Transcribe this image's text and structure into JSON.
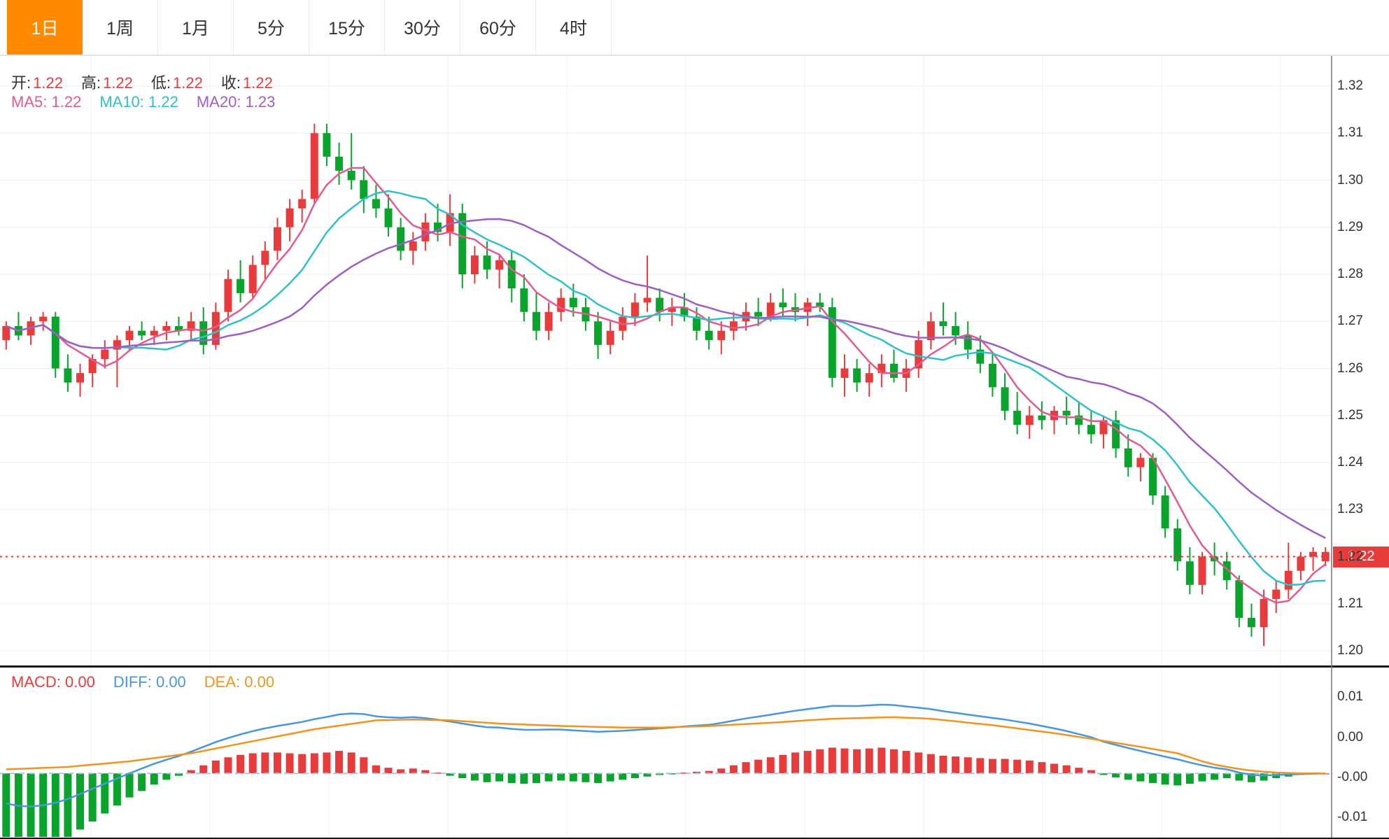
{
  "tabs": [
    {
      "label": "1日",
      "active": true
    },
    {
      "label": "1周",
      "active": false
    },
    {
      "label": "1月",
      "active": false
    },
    {
      "label": "5分",
      "active": false
    },
    {
      "label": "15分",
      "active": false
    },
    {
      "label": "30分",
      "active": false
    },
    {
      "label": "60分",
      "active": false
    },
    {
      "label": "4时",
      "active": false
    }
  ],
  "legend": {
    "ohlc": [
      {
        "label": "开:",
        "value": "1.22"
      },
      {
        "label": "高:",
        "value": "1.22"
      },
      {
        "label": "低:",
        "value": "1.22"
      },
      {
        "label": "收:",
        "value": "1.22"
      }
    ],
    "ma": [
      {
        "label": "MA5:",
        "value": "1.22",
        "color": "#e25a90"
      },
      {
        "label": "MA10:",
        "value": "1.22",
        "color": "#2fc0ca"
      },
      {
        "label": "MA20:",
        "value": "1.23",
        "color": "#9c5fc4"
      }
    ]
  },
  "macd_legend": [
    {
      "label": "MACD:",
      "value": "0.00",
      "color": "#e83b3b"
    },
    {
      "label": "DIFF:",
      "value": "0.00",
      "color": "#4897dd"
    },
    {
      "label": "DEA:",
      "value": "0.00",
      "color": "#f0941e"
    }
  ],
  "price_axis": {
    "labels": [
      "1.32",
      "1.31",
      "1.30",
      "1.29",
      "1.28",
      "1.27",
      "1.26",
      "1.25",
      "1.24",
      "1.23",
      "1.22",
      "1.21",
      "1.20"
    ]
  },
  "macd_axis": {
    "labels": [
      "0.01",
      "0.00",
      "-0.00",
      "-0.01"
    ]
  },
  "current_price": {
    "value": "1.22"
  },
  "chart_data": {
    "type": "candlestick",
    "title": "",
    "price_range": [
      1.2,
      1.32
    ],
    "price_tick_step": 0.01,
    "current_price": 1.22,
    "ma_windows": [
      5,
      10,
      20
    ],
    "colors": {
      "up": "#e83b3b",
      "down": "#09a42c",
      "ma5": "#e25a90",
      "ma10": "#2fc0ca",
      "ma20": "#9c5fc4",
      "diff": "#4897dd",
      "dea": "#f0941e",
      "accent_tab": "#ff8a00"
    },
    "candles": [
      [
        1.266,
        1.27,
        1.264,
        1.269
      ],
      [
        1.269,
        1.272,
        1.266,
        1.267
      ],
      [
        1.267,
        1.271,
        1.265,
        1.27
      ],
      [
        1.27,
        1.272,
        1.268,
        1.271
      ],
      [
        1.271,
        1.272,
        1.258,
        1.26
      ],
      [
        1.26,
        1.263,
        1.255,
        1.257
      ],
      [
        1.257,
        1.261,
        1.254,
        1.259
      ],
      [
        1.259,
        1.263,
        1.256,
        1.262
      ],
      [
        1.262,
        1.266,
        1.26,
        1.264
      ],
      [
        1.264,
        1.267,
        1.256,
        1.266
      ],
      [
        1.266,
        1.269,
        1.264,
        1.268
      ],
      [
        1.268,
        1.27,
        1.266,
        1.267
      ],
      [
        1.267,
        1.269,
        1.265,
        1.268
      ],
      [
        1.268,
        1.27,
        1.266,
        1.269
      ],
      [
        1.269,
        1.271,
        1.267,
        1.268
      ],
      [
        1.268,
        1.272,
        1.266,
        1.27
      ],
      [
        1.27,
        1.273,
        1.263,
        1.265
      ],
      [
        1.265,
        1.274,
        1.264,
        1.272
      ],
      [
        1.272,
        1.281,
        1.27,
        1.279
      ],
      [
        1.279,
        1.283,
        1.274,
        1.276
      ],
      [
        1.276,
        1.284,
        1.275,
        1.282
      ],
      [
        1.282,
        1.287,
        1.279,
        1.285
      ],
      [
        1.285,
        1.292,
        1.283,
        1.29
      ],
      [
        1.29,
        1.296,
        1.287,
        1.294
      ],
      [
        1.294,
        1.298,
        1.291,
        1.296
      ],
      [
        1.296,
        1.312,
        1.295,
        1.31
      ],
      [
        1.31,
        1.312,
        1.303,
        1.305
      ],
      [
        1.305,
        1.308,
        1.299,
        1.302
      ],
      [
        1.302,
        1.31,
        1.298,
        1.3
      ],
      [
        1.3,
        1.303,
        1.293,
        1.296
      ],
      [
        1.296,
        1.299,
        1.292,
        1.294
      ],
      [
        1.294,
        1.297,
        1.288,
        1.29
      ],
      [
        1.29,
        1.292,
        1.283,
        1.285
      ],
      [
        1.285,
        1.289,
        1.282,
        1.287
      ],
      [
        1.287,
        1.293,
        1.285,
        1.291
      ],
      [
        1.291,
        1.295,
        1.287,
        1.289
      ],
      [
        1.289,
        1.297,
        1.286,
        1.293
      ],
      [
        1.293,
        1.295,
        1.277,
        1.28
      ],
      [
        1.28,
        1.286,
        1.278,
        1.284
      ],
      [
        1.284,
        1.287,
        1.279,
        1.281
      ],
      [
        1.281,
        1.284,
        1.277,
        1.283
      ],
      [
        1.283,
        1.285,
        1.274,
        1.277
      ],
      [
        1.277,
        1.28,
        1.27,
        1.272
      ],
      [
        1.272,
        1.276,
        1.266,
        1.268
      ],
      [
        1.268,
        1.274,
        1.266,
        1.272
      ],
      [
        1.272,
        1.277,
        1.27,
        1.275
      ],
      [
        1.275,
        1.278,
        1.271,
        1.273
      ],
      [
        1.273,
        1.275,
        1.268,
        1.27
      ],
      [
        1.27,
        1.272,
        1.262,
        1.265
      ],
      [
        1.265,
        1.27,
        1.263,
        1.268
      ],
      [
        1.268,
        1.273,
        1.266,
        1.271
      ],
      [
        1.271,
        1.276,
        1.269,
        1.274
      ],
      [
        1.274,
        1.284,
        1.272,
        1.275
      ],
      [
        1.275,
        1.277,
        1.27,
        1.272
      ],
      [
        1.272,
        1.275,
        1.269,
        1.273
      ],
      [
        1.273,
        1.276,
        1.27,
        1.271
      ],
      [
        1.271,
        1.273,
        1.266,
        1.268
      ],
      [
        1.268,
        1.271,
        1.264,
        1.266
      ],
      [
        1.266,
        1.27,
        1.263,
        1.268
      ],
      [
        1.268,
        1.272,
        1.266,
        1.27
      ],
      [
        1.27,
        1.274,
        1.268,
        1.272
      ],
      [
        1.272,
        1.275,
        1.269,
        1.271
      ],
      [
        1.271,
        1.276,
        1.27,
        1.274
      ],
      [
        1.274,
        1.277,
        1.271,
        1.273
      ],
      [
        1.273,
        1.276,
        1.27,
        1.272
      ],
      [
        1.272,
        1.275,
        1.269,
        1.274
      ],
      [
        1.274,
        1.276,
        1.272,
        1.273
      ],
      [
        1.273,
        1.275,
        1.256,
        1.258
      ],
      [
        1.258,
        1.263,
        1.254,
        1.26
      ],
      [
        1.26,
        1.262,
        1.255,
        1.257
      ],
      [
        1.257,
        1.261,
        1.254,
        1.259
      ],
      [
        1.259,
        1.263,
        1.256,
        1.261
      ],
      [
        1.261,
        1.264,
        1.257,
        1.258
      ],
      [
        1.258,
        1.262,
        1.255,
        1.26
      ],
      [
        1.26,
        1.268,
        1.258,
        1.266
      ],
      [
        1.266,
        1.272,
        1.264,
        1.27
      ],
      [
        1.27,
        1.274,
        1.267,
        1.269
      ],
      [
        1.269,
        1.272,
        1.265,
        1.267
      ],
      [
        1.267,
        1.27,
        1.262,
        1.264
      ],
      [
        1.264,
        1.267,
        1.259,
        1.261
      ],
      [
        1.261,
        1.263,
        1.254,
        1.256
      ],
      [
        1.256,
        1.259,
        1.249,
        1.251
      ],
      [
        1.251,
        1.255,
        1.246,
        1.248
      ],
      [
        1.248,
        1.252,
        1.245,
        1.25
      ],
      [
        1.25,
        1.253,
        1.247,
        1.249
      ],
      [
        1.249,
        1.252,
        1.246,
        1.251
      ],
      [
        1.251,
        1.254,
        1.248,
        1.25
      ],
      [
        1.25,
        1.253,
        1.246,
        1.248
      ],
      [
        1.248,
        1.251,
        1.244,
        1.246
      ],
      [
        1.246,
        1.25,
        1.243,
        1.249
      ],
      [
        1.249,
        1.251,
        1.241,
        1.243
      ],
      [
        1.243,
        1.246,
        1.237,
        1.239
      ],
      [
        1.239,
        1.242,
        1.236,
        1.241
      ],
      [
        1.241,
        1.242,
        1.231,
        1.233
      ],
      [
        1.233,
        1.235,
        1.224,
        1.226
      ],
      [
        1.226,
        1.228,
        1.217,
        1.219
      ],
      [
        1.219,
        1.222,
        1.212,
        1.214
      ],
      [
        1.214,
        1.221,
        1.212,
        1.22
      ],
      [
        1.22,
        1.223,
        1.216,
        1.219
      ],
      [
        1.219,
        1.221,
        1.213,
        1.215
      ],
      [
        1.215,
        1.216,
        1.205,
        1.207
      ],
      [
        1.207,
        1.21,
        1.203,
        1.205
      ],
      [
        1.205,
        1.213,
        1.201,
        1.211
      ],
      [
        1.211,
        1.215,
        1.208,
        1.213
      ],
      [
        1.213,
        1.223,
        1.211,
        1.217
      ],
      [
        1.217,
        1.221,
        1.215,
        1.22
      ],
      [
        1.22,
        1.222,
        1.217,
        1.221
      ],
      [
        1.219,
        1.222,
        1.218,
        1.221
      ]
    ],
    "macd": {
      "unit": 0.001,
      "axis_range": [
        -0.008,
        0.013
      ],
      "hist": [
        -8.5,
        -9.2,
        -9.5,
        -9.3,
        -8.8,
        -8.0,
        -7.0,
        -6.0,
        -5.0,
        -4.0,
        -3.0,
        -2.2,
        -1.4,
        -0.8,
        -0.3,
        0.4,
        1.0,
        1.6,
        2.0,
        2.3,
        2.5,
        2.6,
        2.6,
        2.5,
        2.4,
        2.5,
        2.6,
        2.8,
        2.6,
        2.0,
        1.0,
        0.7,
        0.5,
        0.6,
        0.4,
        0.1,
        -0.3,
        -0.6,
        -0.9,
        -1.1,
        -1.0,
        -1.2,
        -1.3,
        -1.2,
        -1.0,
        -0.9,
        -1.0,
        -1.1,
        -1.2,
        -1.0,
        -0.8,
        -0.6,
        -0.4,
        -0.2,
        -0.1,
        0.1,
        0.2,
        0.3,
        0.6,
        1.0,
        1.4,
        1.7,
        2.0,
        2.3,
        2.6,
        2.8,
        3.0,
        3.2,
        3.1,
        3.0,
        3.1,
        3.2,
        3.0,
        2.8,
        2.6,
        2.4,
        2.2,
        2.1,
        2.0,
        1.9,
        1.8,
        1.8,
        1.7,
        1.6,
        1.4,
        1.2,
        1.0,
        0.7,
        0.4,
        -0.2,
        -0.5,
        -0.8,
        -1.0,
        -1.2,
        -1.4,
        -1.5,
        -1.3,
        -1.0,
        -0.8,
        -0.6,
        -0.9,
        -1.1,
        -0.9,
        -0.6,
        -0.4,
        -0.2,
        -0.1,
        0.0
      ],
      "diff": [
        -3.75,
        -4.04,
        -4.13,
        -3.97,
        -3.66,
        -3.2,
        -2.56,
        -1.92,
        -1.28,
        -0.64,
        0,
        0.6,
        1.2,
        1.7,
        2.15,
        2.7,
        3.3,
        3.9,
        4.4,
        4.85,
        5.25,
        5.6,
        5.9,
        6.15,
        6.4,
        6.75,
        7.02,
        7.34,
        7.46,
        7.38,
        7.1,
        6.98,
        6.92,
        7.0,
        6.87,
        6.68,
        6.45,
        6.2,
        5.95,
        5.75,
        5.7,
        5.54,
        5.43,
        5.42,
        5.46,
        5.45,
        5.36,
        5.27,
        5.18,
        5.24,
        5.3,
        5.4,
        5.5,
        5.6,
        5.7,
        5.85,
        5.95,
        6.05,
        6.28,
        6.56,
        6.84,
        7.07,
        7.3,
        7.55,
        7.8,
        8.0,
        8.2,
        8.4,
        8.39,
        8.38,
        8.47,
        8.56,
        8.5,
        8.33,
        8.17,
        8.0,
        7.74,
        7.53,
        7.32,
        7.11,
        6.9,
        6.7,
        6.45,
        6.2,
        5.9,
        5.6,
        5.27,
        4.88,
        4.5,
        3.95,
        3.55,
        3.15,
        2.8,
        2.43,
        2.07,
        1.75,
        1.35,
        1.0,
        0.7,
        0.5,
        0.1,
        -0.2,
        -0.25,
        -0.2,
        -0.15,
        -0.1,
        -0.05,
        0
      ],
      "dea": [
        0.5,
        0.56,
        0.62,
        0.68,
        0.74,
        0.8,
        0.94,
        1.08,
        1.22,
        1.36,
        1.5,
        1.7,
        1.9,
        2.1,
        2.3,
        2.5,
        2.8,
        3.1,
        3.4,
        3.7,
        4.0,
        4.3,
        4.6,
        4.9,
        5.2,
        5.5,
        5.72,
        5.94,
        6.16,
        6.38,
        6.6,
        6.63,
        6.67,
        6.7,
        6.67,
        6.63,
        6.6,
        6.5,
        6.4,
        6.3,
        6.2,
        6.14,
        6.08,
        6.02,
        5.96,
        5.9,
        5.86,
        5.82,
        5.78,
        5.74,
        5.7,
        5.7,
        5.7,
        5.7,
        5.75,
        5.8,
        5.85,
        5.9,
        5.98,
        6.06,
        6.14,
        6.22,
        6.3,
        6.4,
        6.5,
        6.6,
        6.7,
        6.8,
        6.84,
        6.88,
        6.92,
        6.96,
        7.0,
        6.93,
        6.87,
        6.8,
        6.64,
        6.48,
        6.32,
        6.16,
        6.0,
        5.8,
        5.6,
        5.4,
        5.2,
        5.0,
        4.77,
        4.53,
        4.3,
        4.05,
        3.8,
        3.55,
        3.3,
        3.03,
        2.77,
        2.5,
        2.0,
        1.5,
        1.1,
        0.8,
        0.55,
        0.35,
        0.2,
        0.1,
        0.05,
        0,
        0,
        0
      ]
    }
  }
}
